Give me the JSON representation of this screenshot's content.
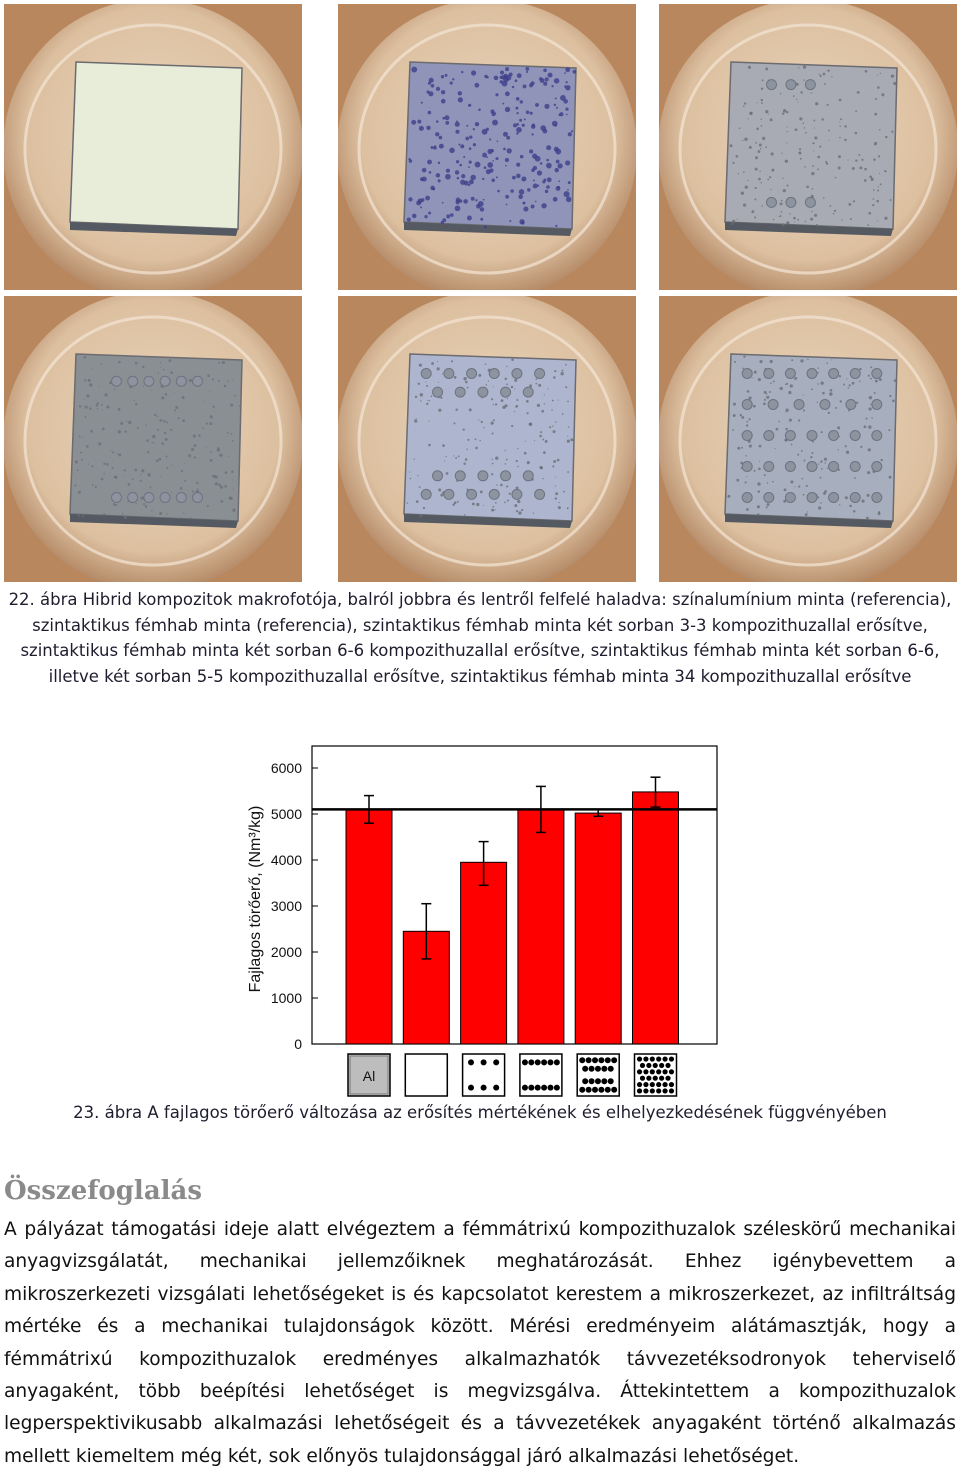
{
  "figure22": {
    "caption": "22. ábra Hibrid kompozitok makrofotója, balról jobbra és lentről felfelé haladva: színalumínium minta (referencia), szintaktikus fémhab minta (referencia), szintaktikus fémhab minta két sorban 3-3 kompozithuzallal erősítve, szintaktikus fémhab minta két sorban 6-6 kompozithuzallal erősítve, szintaktikus fémhab minta két sorban 6-6, illetve két sorban 5-5 kompozithuzallal erősítve, szintaktikus fémhab minta 34 kompozithuzallal erősítve",
    "photos": [
      {
        "sample": "aluminium-reference",
        "color": "#e8edda"
      },
      {
        "sample": "syntactic-foam-reference",
        "color": "#8f94b8"
      },
      {
        "sample": "foam-2x3-wires",
        "color": "#a8abb3"
      },
      {
        "sample": "foam-2x6-wires",
        "color": "#8a8f94"
      },
      {
        "sample": "foam-2x6-2x5-wires",
        "color": "#aeb6cf"
      },
      {
        "sample": "foam-34-wires",
        "color": "#a7aebd"
      }
    ]
  },
  "chart_data": {
    "type": "bar",
    "ylabel": "Fajlagos törőerő, (Nm³/kg)",
    "ylim": [
      0,
      6000
    ],
    "yticks": [
      0,
      1000,
      2000,
      3000,
      4000,
      5000,
      6000
    ],
    "categories": [
      "Al",
      "",
      "",
      "",
      "",
      ""
    ],
    "category_icons": [
      "al-box",
      "empty-box",
      "dots-2x3-box",
      "dots-2x6-box",
      "dots-mixed-box",
      "dots-34-box"
    ],
    "values": [
      5100,
      2450,
      3950,
      5100,
      5020,
      5480
    ],
    "error_low": [
      4800,
      1850,
      3450,
      4600,
      4950,
      5150
    ],
    "error_high": [
      5400,
      3050,
      4400,
      5600,
      5100,
      5800
    ],
    "reference_line": 5100,
    "bar_color": "#ff0000",
    "caption": "23. ábra A fajlagos törőerő változása az erősítés mértékének és elhelyezkedésének függvényében"
  },
  "summary": {
    "heading": "Összefoglalás",
    "text": "A pályázat támogatási ideje alatt elvégeztem a fémmátrixú kompozithuzalok széleskörű mechanikai anyagvizsgálatát, mechanikai jellemzőiknek meghatározását. Ehhez igénybevettem a mikroszerkezeti vizsgálati lehetőségeket is és kapcsolatot kerestem a mikroszerkezet, az infiltráltság mértéke és a mechanikai tulajdonságok között. Mérési eredményeim alátámasztják, hogy a fémmátrixú kompozithuzalok eredményes alkalmazhatók távvezetéksodronyok teherviselő anyagaként, több beépítési lehetőséget is megvizsgálva. Áttekintettem a kompozithuzalok legperspektivikusabb alkalmazási lehetőségeit és a távvezetékek anyagaként történő alkalmazás mellett kiemeltem még két, sok előnyös tulajdonsággal járó alkalmazási lehetőséget."
  }
}
